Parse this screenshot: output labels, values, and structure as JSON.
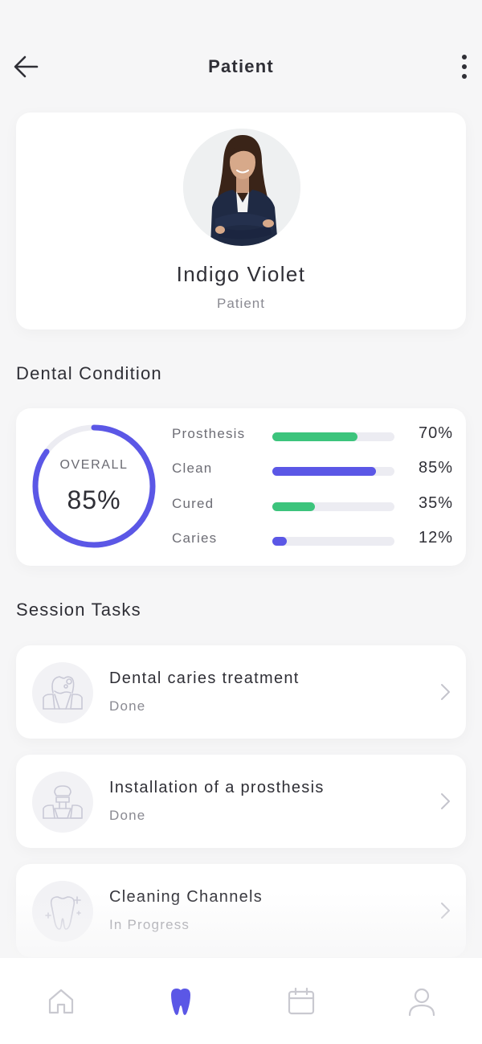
{
  "header": {
    "title": "Patient",
    "back_icon": "arrow-left-icon",
    "more_icon": "more-vertical-icon"
  },
  "profile": {
    "name": "Indigo Violet",
    "role": "Patient",
    "avatar": "patient-photo"
  },
  "condition": {
    "section_title": "Dental Condition",
    "overall_label": "OVERALL",
    "overall_value": "85%",
    "overall_fraction": 0.85,
    "metrics": [
      {
        "label": "Prosthesis",
        "value": "70%",
        "fraction": 0.7,
        "color": "#3cc47c"
      },
      {
        "label": "Clean",
        "value": "85%",
        "fraction": 0.85,
        "color": "#5b57e6"
      },
      {
        "label": "Cured",
        "value": "35%",
        "fraction": 0.35,
        "color": "#3cc47c"
      },
      {
        "label": "Caries",
        "value": "12%",
        "fraction": 0.12,
        "color": "#5b57e6"
      }
    ]
  },
  "tasks": {
    "section_title": "Session Tasks",
    "items": [
      {
        "title": "Dental caries treatment",
        "status": "Done",
        "icon": "tooth-caries-icon"
      },
      {
        "title": "Installation of a prosthesis",
        "status": "Done",
        "icon": "tooth-prosthesis-icon"
      },
      {
        "title": "Cleaning Channels",
        "status": "In Progress",
        "icon": "tooth-sparkle-icon"
      }
    ]
  },
  "nav": {
    "items": [
      {
        "icon": "home-icon",
        "active": false
      },
      {
        "icon": "tooth-icon",
        "active": true
      },
      {
        "icon": "calendar-icon",
        "active": false
      },
      {
        "icon": "user-icon",
        "active": false
      }
    ]
  },
  "colors": {
    "accent": "#5b57e6",
    "green": "#3cc47c",
    "track": "#ececf2",
    "inactive_icon": "#c9c9d0"
  }
}
